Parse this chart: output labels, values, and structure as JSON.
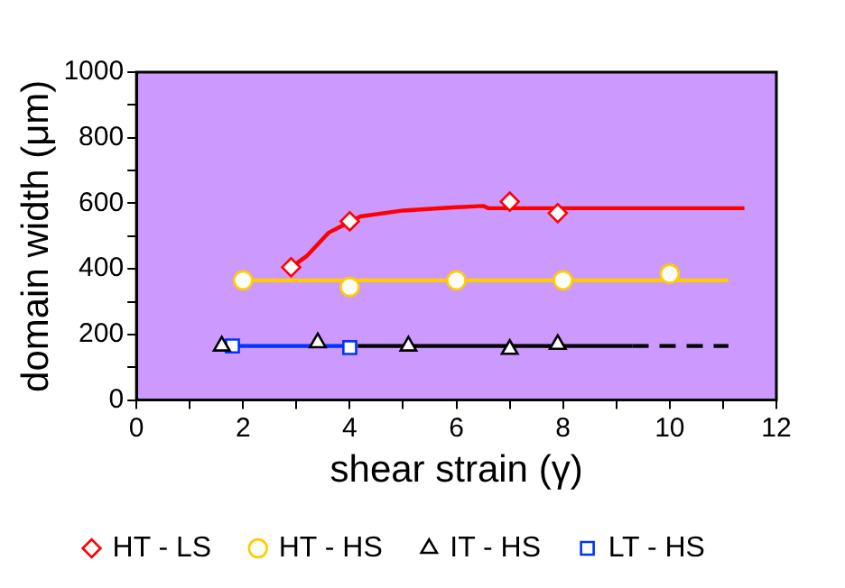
{
  "chart_data": {
    "type": "scatter",
    "xlabel": "shear strain (γ)",
    "ylabel": "domain width (μm)",
    "xlim": [
      0,
      12
    ],
    "ylim": [
      0,
      1000
    ],
    "xticks": [
      0,
      {
        "value": 1,
        "label": null
      },
      2,
      {
        "value": 3,
        "label": null
      },
      4,
      {
        "value": 5,
        "label": null
      },
      6,
      {
        "value": 7,
        "label": null
      },
      8,
      {
        "value": 9,
        "label": null
      },
      10,
      {
        "value": 11,
        "label": null
      },
      12
    ],
    "yticks": [
      0,
      {
        "value": 100,
        "label": null
      },
      200,
      {
        "value": 300,
        "label": null
      },
      400,
      {
        "value": 500,
        "label": null
      },
      600,
      {
        "value": 700,
        "label": null
      },
      800,
      {
        "value": 900,
        "label": null
      },
      1000
    ],
    "grid": false,
    "legend": "bottom",
    "series": [
      {
        "type": "line",
        "marker": "none",
        "line_style": "solid",
        "color": "#ff0000",
        "x": [
          2.9,
          3.2,
          3.6,
          4.2,
          5,
          6,
          6.5,
          6.6,
          7,
          11.4
        ],
        "values": [
          405,
          440,
          510,
          560,
          578,
          588,
          592,
          585,
          585,
          585
        ]
      },
      {
        "type": "line",
        "marker": "none",
        "line_style": "solid",
        "color": "#ffcc00",
        "x": [
          2,
          11.1
        ],
        "values": [
          365,
          365
        ]
      },
      {
        "type": "line",
        "marker": "none",
        "line_style": "solid",
        "color": "#000000",
        "x": [
          4.15,
          9.3
        ],
        "values": [
          165,
          165
        ]
      },
      {
        "type": "line",
        "marker": "none",
        "line_style": "dashed",
        "color": "#000000",
        "x": [
          9.3,
          11.1
        ],
        "values": [
          165,
          165
        ]
      },
      {
        "type": "line",
        "marker": "none",
        "line_style": "solid",
        "color": "#0033ff",
        "x": [
          1.8,
          4
        ],
        "values": [
          165,
          165
        ]
      },
      {
        "name": "HT - LS",
        "marker": "diamond",
        "color": "#ff0000",
        "x": [
          2.9,
          4,
          7,
          7.9
        ],
        "values": [
          405,
          545,
          605,
          570
        ]
      },
      {
        "name": "HT - HS",
        "marker": "circle",
        "color": "#ffcc00",
        "x": [
          2,
          4,
          6,
          8,
          10
        ],
        "values": [
          365,
          345,
          365,
          365,
          385
        ]
      },
      {
        "name": "IT - HS",
        "marker": "triangle",
        "color": "#000000",
        "x": [
          1.6,
          3.4,
          5.1,
          7,
          7.9
        ],
        "values": [
          165,
          175,
          165,
          155,
          170
        ]
      },
      {
        "name": "LT - HS",
        "marker": "square",
        "color": "#0033ff",
        "x": [
          1.8,
          4
        ],
        "values": [
          165,
          160
        ]
      }
    ]
  }
}
